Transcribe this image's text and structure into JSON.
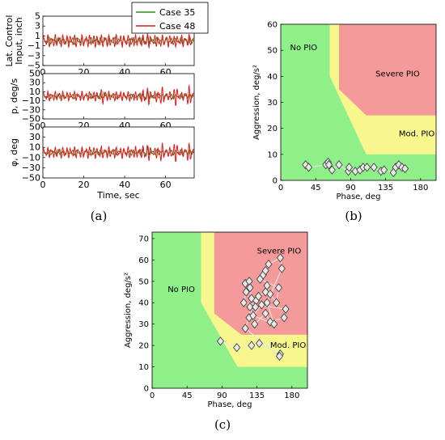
{
  "captions": {
    "a": "(a)",
    "b": "(b)",
    "c": "(c)"
  },
  "chart_data": [
    {
      "id": "a",
      "type": "line",
      "legend": {
        "placement": "top-right",
        "entries": [
          {
            "name": "Case 35",
            "color": "#2e8b1e"
          },
          {
            "name": "Case 48",
            "color": "#e41a1c"
          }
        ]
      },
      "xlabel": "Time, sec",
      "xlim": [
        0,
        74
      ],
      "xticks": [
        "0",
        "20",
        "40",
        "60"
      ],
      "xtick_values": [
        0,
        20,
        40,
        60
      ],
      "panels": [
        {
          "ylabel_lines": [
            "Lat. Control",
            "Input, inch"
          ],
          "ylim": [
            -5,
            5
          ],
          "yticks": [
            "5",
            "3",
            "1",
            "−1",
            "−3",
            "−5"
          ],
          "ytick_values": [
            5,
            3,
            1,
            -1,
            -3,
            -5
          ],
          "series": [
            {
              "name": "Case 35",
              "amplitude": 0.8,
              "bursts": [
                [
                  47,
                  52,
                  1.5
                ]
              ]
            },
            {
              "name": "Case 48",
              "amplitude": 1.4,
              "bursts": [
                [
                  48,
                  54,
                  2.0
                ]
              ]
            }
          ]
        },
        {
          "ylabel_lines": [
            "p, deg/s"
          ],
          "ylim": [
            -50,
            50
          ],
          "yticks": [
            "50",
            "30",
            "10",
            "−10",
            "−30",
            "−50"
          ],
          "ytick_values": [
            50,
            30,
            10,
            -10,
            -30,
            -50
          ],
          "series": [
            {
              "name": "Case 35",
              "amplitude": 6,
              "bursts": [
                [
                  28,
                  32,
                  12
                ],
                [
                  48,
                  52,
                  15
                ]
              ]
            },
            {
              "name": "Case 48",
              "amplitude": 12,
              "bursts": [
                [
                  27,
                  30,
                  20
                ],
                [
                  48,
                  74,
                  25
                ]
              ]
            }
          ]
        },
        {
          "ylabel_lines": [
            "φ, deg"
          ],
          "ylim": [
            -50,
            50
          ],
          "yticks": [
            "50",
            "30",
            "10",
            "−10",
            "−30",
            "−50"
          ],
          "ytick_values": [
            50,
            30,
            10,
            -10,
            -30,
            -50
          ],
          "series": [
            {
              "name": "Case 35",
              "amplitude": 6,
              "bursts": [
                [
                  48,
                  52,
                  15
                ]
              ]
            },
            {
              "name": "Case 48",
              "amplitude": 13,
              "bursts": [
                [
                  48,
                  74,
                  22
                ]
              ]
            }
          ]
        }
      ]
    },
    {
      "id": "b",
      "type": "scatter",
      "xlabel": "Phase, deg",
      "ylabel": "Aggression, deg/s²",
      "xlim": [
        0,
        200
      ],
      "ylim": [
        0,
        60
      ],
      "xticks": [
        "0",
        "45",
        "90",
        "135",
        "180"
      ],
      "xtick_values": [
        0,
        45,
        90,
        135,
        180
      ],
      "yticks": [
        "0",
        "10",
        "20",
        "30",
        "40",
        "50",
        "60"
      ],
      "ytick_values": [
        0,
        10,
        20,
        30,
        40,
        50,
        60
      ],
      "regions": [
        {
          "name": "No PIO",
          "color": "#8ff08a",
          "label_at": [
            12,
            50
          ]
        },
        {
          "name": "Mod. PIO",
          "color": "#f7f78e",
          "label_at": [
            152,
            17
          ]
        },
        {
          "name": "Severe PIO",
          "color": "#f59a9a",
          "label_at": [
            122,
            40
          ],
          "boundary": [
            [
              75,
              60
            ],
            [
              75,
              35
            ],
            [
              110,
              25
            ],
            [
              200,
              25
            ]
          ]
        }
      ],
      "yellow_band_boundary": [
        [
          63,
          60
        ],
        [
          63,
          40
        ],
        [
          110,
          10
        ],
        [
          200,
          10
        ]
      ],
      "points": [
        [
          32,
          6
        ],
        [
          36,
          5
        ],
        [
          58,
          6
        ],
        [
          61,
          7
        ],
        [
          62,
          6
        ],
        [
          66,
          4
        ],
        [
          75,
          6
        ],
        [
          87,
          3.5
        ],
        [
          88,
          5
        ],
        [
          96,
          3.5
        ],
        [
          102,
          4
        ],
        [
          106,
          5
        ],
        [
          111,
          5
        ],
        [
          120,
          5
        ],
        [
          129,
          3.5
        ],
        [
          133,
          4
        ],
        [
          145,
          3
        ],
        [
          148,
          5
        ],
        [
          152,
          6
        ],
        [
          156,
          5
        ],
        [
          160,
          4.5
        ]
      ]
    },
    {
      "id": "c",
      "type": "scatter",
      "xlabel": "Phase, deg",
      "ylabel": "Aggression, deg/s²",
      "xlim": [
        0,
        200
      ],
      "ylim": [
        0,
        73
      ],
      "xticks": [
        "0",
        "45",
        "90",
        "135",
        "180"
      ],
      "xtick_values": [
        0,
        45,
        90,
        135,
        180
      ],
      "yticks": [
        "0",
        "10",
        "20",
        "30",
        "40",
        "50",
        "60",
        "70"
      ],
      "ytick_values": [
        0,
        10,
        20,
        30,
        40,
        50,
        60,
        70
      ],
      "regions": [
        {
          "name": "No PIO",
          "color": "#8ff08a",
          "label_at": [
            20,
            45
          ]
        },
        {
          "name": "Mod. PIO",
          "color": "#f7f78e",
          "label_at": [
            152,
            19
          ]
        },
        {
          "name": "Severe PIO",
          "color": "#f59a9a",
          "label_at": [
            135,
            63
          ],
          "boundary": [
            [
              80,
              73
            ],
            [
              80,
              35
            ],
            [
              115,
              25
            ],
            [
              200,
              25
            ]
          ]
        }
      ],
      "yellow_band_boundary": [
        [
          63,
          73
        ],
        [
          63,
          40
        ],
        [
          110,
          10
        ],
        [
          200,
          10
        ]
      ],
      "points": [
        [
          88,
          22
        ],
        [
          109,
          19
        ],
        [
          128,
          20
        ],
        [
          138,
          21
        ],
        [
          165,
          16
        ],
        [
          164,
          15
        ],
        [
          120,
          28
        ],
        [
          125,
          33
        ],
        [
          126,
          38
        ],
        [
          132,
          30
        ],
        [
          146,
          35
        ],
        [
          152,
          31
        ],
        [
          170,
          33
        ],
        [
          172,
          37
        ],
        [
          118,
          40
        ],
        [
          121,
          45
        ],
        [
          120,
          49
        ],
        [
          125,
          50
        ],
        [
          126,
          47
        ],
        [
          128,
          42
        ],
        [
          134,
          41
        ],
        [
          133,
          38
        ],
        [
          137,
          43
        ],
        [
          146,
          45
        ],
        [
          148,
          48
        ],
        [
          152,
          44
        ],
        [
          160,
          40
        ],
        [
          163,
          47
        ],
        [
          139,
          51
        ],
        [
          143,
          53
        ],
        [
          146,
          55
        ],
        [
          150,
          58
        ],
        [
          165,
          61
        ],
        [
          167,
          56
        ],
        [
          148,
          40
        ],
        [
          157,
          30
        ],
        [
          130,
          34
        ],
        [
          141,
          39
        ]
      ]
    }
  ]
}
